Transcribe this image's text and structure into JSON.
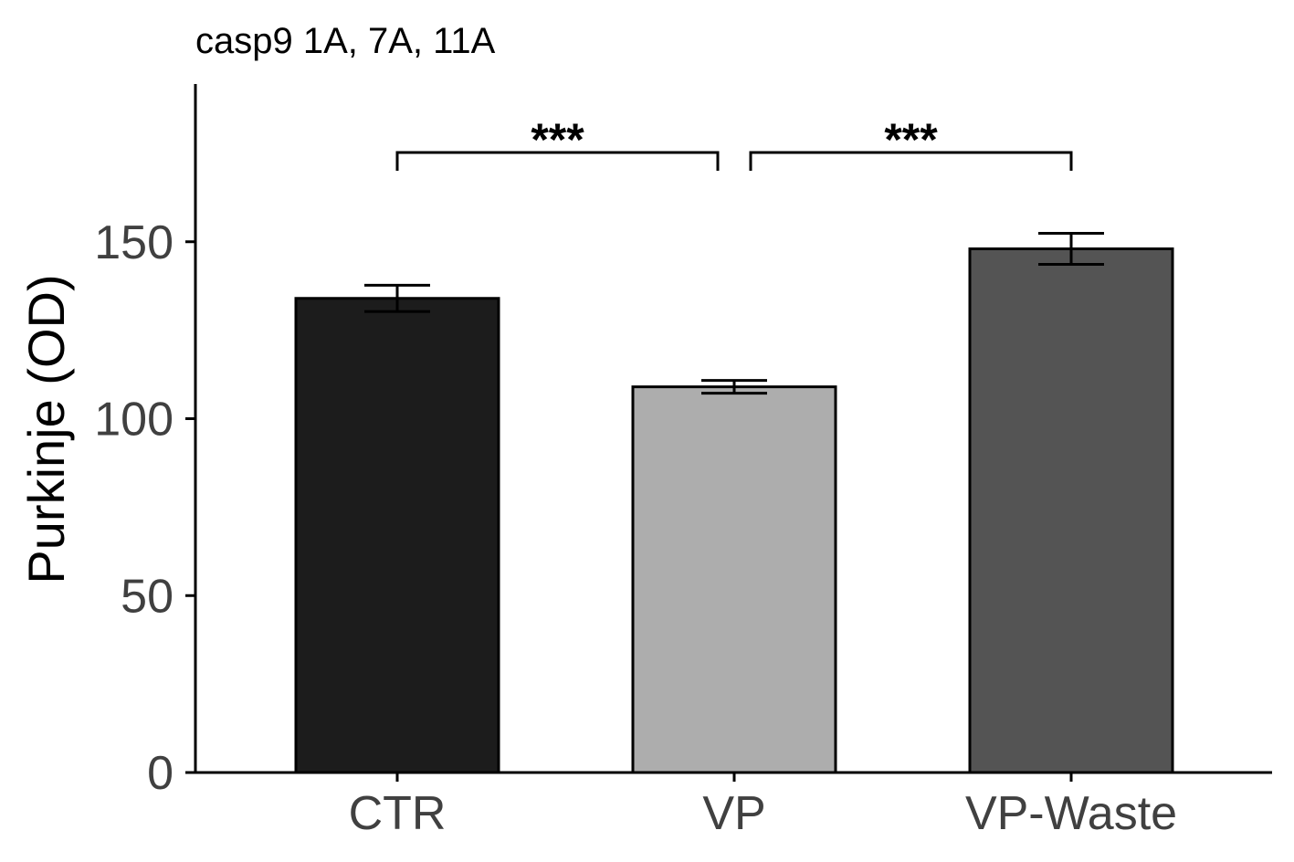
{
  "chart_data": {
    "type": "bar",
    "title": "casp9 1A, 7A, 11A",
    "xlabel": "",
    "ylabel": "Purkinje (OD)",
    "categories": [
      "CTR",
      "VP",
      "VP-Waste"
    ],
    "values": [
      134,
      109,
      148
    ],
    "errors": [
      3.7,
      1.8,
      4.4
    ],
    "colors": [
      "#1c1c1c",
      "#adadad",
      "#545454"
    ],
    "ylim": [
      0,
      195
    ],
    "yticks": [
      0,
      50,
      100,
      150
    ],
    "ytick_labels": [
      "0",
      "50",
      "100",
      "150"
    ],
    "grid": false,
    "legend": "none",
    "significance": [
      {
        "from": "CTR",
        "to": "VP",
        "label": "***"
      },
      {
        "from": "VP",
        "to": "VP-Waste",
        "label": "***"
      }
    ]
  }
}
